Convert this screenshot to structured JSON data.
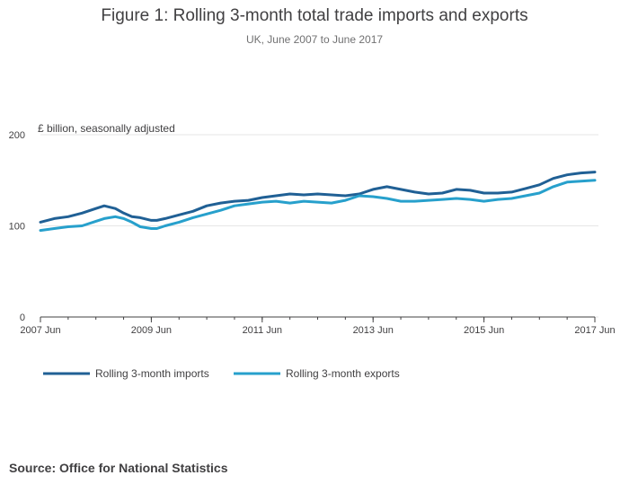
{
  "chart_data": {
    "type": "line",
    "title": "Figure 1: Rolling 3-month total trade imports and exports",
    "subtitle": "UK, June 2007 to June 2017",
    "ylabel": "£ billion, seasonally adjusted",
    "xlabel": "",
    "ylim": [
      0,
      200
    ],
    "yticks": [
      0,
      100,
      200
    ],
    "xlim": [
      2007.5,
      2017.5
    ],
    "xticks": [
      {
        "x": 2007.5,
        "label": "2007 Jun"
      },
      {
        "x": 2009.5,
        "label": "2009 Jun"
      },
      {
        "x": 2011.5,
        "label": "2011 Jun"
      },
      {
        "x": 2013.5,
        "label": "2013 Jun"
      },
      {
        "x": 2015.5,
        "label": "2015 Jun"
      },
      {
        "x": 2017.5,
        "label": "2017 Jun"
      }
    ],
    "grid": true,
    "legend_position": "bottom-left",
    "colors": {
      "imports": "#206095",
      "exports": "#27a0cc"
    },
    "series": [
      {
        "name": "Rolling 3-month imports",
        "color": "#206095",
        "points": [
          [
            2007.5,
            104
          ],
          [
            2007.75,
            108
          ],
          [
            2008.0,
            110
          ],
          [
            2008.25,
            114
          ],
          [
            2008.5,
            119
          ],
          [
            2008.65,
            122
          ],
          [
            2008.85,
            119
          ],
          [
            2009.0,
            114
          ],
          [
            2009.15,
            110
          ],
          [
            2009.3,
            109
          ],
          [
            2009.5,
            106
          ],
          [
            2009.6,
            106
          ],
          [
            2009.75,
            108
          ],
          [
            2010.0,
            112
          ],
          [
            2010.25,
            116
          ],
          [
            2010.5,
            122
          ],
          [
            2010.75,
            125
          ],
          [
            2011.0,
            127
          ],
          [
            2011.25,
            128
          ],
          [
            2011.5,
            131
          ],
          [
            2011.75,
            133
          ],
          [
            2012.0,
            135
          ],
          [
            2012.25,
            134
          ],
          [
            2012.5,
            135
          ],
          [
            2012.75,
            134
          ],
          [
            2013.0,
            133
          ],
          [
            2013.25,
            135
          ],
          [
            2013.5,
            140
          ],
          [
            2013.75,
            143
          ],
          [
            2014.0,
            140
          ],
          [
            2014.25,
            137
          ],
          [
            2014.5,
            135
          ],
          [
            2014.75,
            136
          ],
          [
            2015.0,
            140
          ],
          [
            2015.25,
            139
          ],
          [
            2015.5,
            136
          ],
          [
            2015.75,
            136
          ],
          [
            2016.0,
            137
          ],
          [
            2016.25,
            141
          ],
          [
            2016.5,
            145
          ],
          [
            2016.75,
            152
          ],
          [
            2017.0,
            156
          ],
          [
            2017.25,
            158
          ],
          [
            2017.5,
            159
          ]
        ]
      },
      {
        "name": "Rolling 3-month exports",
        "color": "#27a0cc",
        "points": [
          [
            2007.5,
            95
          ],
          [
            2007.75,
            97
          ],
          [
            2008.0,
            99
          ],
          [
            2008.25,
            100
          ],
          [
            2008.5,
            105
          ],
          [
            2008.65,
            108
          ],
          [
            2008.85,
            110
          ],
          [
            2009.0,
            108
          ],
          [
            2009.15,
            104
          ],
          [
            2009.3,
            99
          ],
          [
            2009.5,
            97
          ],
          [
            2009.6,
            97
          ],
          [
            2009.75,
            100
          ],
          [
            2010.0,
            104
          ],
          [
            2010.25,
            109
          ],
          [
            2010.5,
            113
          ],
          [
            2010.75,
            117
          ],
          [
            2011.0,
            122
          ],
          [
            2011.25,
            124
          ],
          [
            2011.5,
            126
          ],
          [
            2011.75,
            127
          ],
          [
            2012.0,
            125
          ],
          [
            2012.25,
            127
          ],
          [
            2012.5,
            126
          ],
          [
            2012.75,
            125
          ],
          [
            2013.0,
            128
          ],
          [
            2013.25,
            133
          ],
          [
            2013.5,
            132
          ],
          [
            2013.75,
            130
          ],
          [
            2014.0,
            127
          ],
          [
            2014.25,
            127
          ],
          [
            2014.5,
            128
          ],
          [
            2014.75,
            129
          ],
          [
            2015.0,
            130
          ],
          [
            2015.25,
            129
          ],
          [
            2015.5,
            127
          ],
          [
            2015.75,
            129
          ],
          [
            2016.0,
            130
          ],
          [
            2016.25,
            133
          ],
          [
            2016.5,
            136
          ],
          [
            2016.75,
            143
          ],
          [
            2017.0,
            148
          ],
          [
            2017.25,
            149
          ],
          [
            2017.5,
            150
          ]
        ]
      }
    ]
  },
  "source": "Source: Office for National Statistics"
}
